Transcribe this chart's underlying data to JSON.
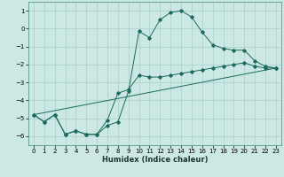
{
  "xlabel": "Humidex (Indice chaleur)",
  "bg_color": "#cce8e4",
  "grid_color": "#aacfcb",
  "line_color": "#1a6b5a",
  "xlim": [
    -0.5,
    23.5
  ],
  "ylim": [
    -6.5,
    1.5
  ],
  "yticks": [
    1,
    0,
    -1,
    -2,
    -3,
    -4,
    -5,
    -6
  ],
  "xticks": [
    0,
    1,
    2,
    3,
    4,
    5,
    6,
    7,
    8,
    9,
    10,
    11,
    12,
    13,
    14,
    15,
    16,
    17,
    18,
    19,
    20,
    21,
    22,
    23
  ],
  "trend_x": [
    0,
    23
  ],
  "trend_y": [
    -4.8,
    -2.2
  ],
  "curve1_x": [
    0,
    1,
    2,
    3,
    4,
    5,
    6,
    7,
    8,
    9,
    10,
    11,
    12,
    13,
    14,
    15,
    16,
    17,
    18,
    19,
    20,
    21,
    22,
    23
  ],
  "curve1_y": [
    -4.8,
    -5.2,
    -4.8,
    -5.9,
    -5.7,
    -5.9,
    -5.9,
    -5.4,
    -5.2,
    -3.5,
    -0.15,
    -0.5,
    0.5,
    0.9,
    1.0,
    0.65,
    -0.2,
    -0.9,
    -1.1,
    -1.2,
    -1.2,
    -1.8,
    -2.1,
    -2.2
  ],
  "curve2_x": [
    0,
    1,
    2,
    3,
    4,
    5,
    6,
    7,
    8,
    9,
    10,
    11,
    12,
    13,
    14,
    15,
    16,
    17,
    18,
    19,
    20,
    21,
    22,
    23
  ],
  "curve2_y": [
    -4.8,
    -5.2,
    -4.8,
    -5.9,
    -5.7,
    -5.9,
    -5.9,
    -5.1,
    -3.6,
    -3.4,
    -2.6,
    -2.7,
    -2.7,
    -2.6,
    -2.5,
    -2.4,
    -2.3,
    -2.2,
    -2.1,
    -2.0,
    -1.9,
    -2.1,
    -2.2,
    -2.2
  ]
}
